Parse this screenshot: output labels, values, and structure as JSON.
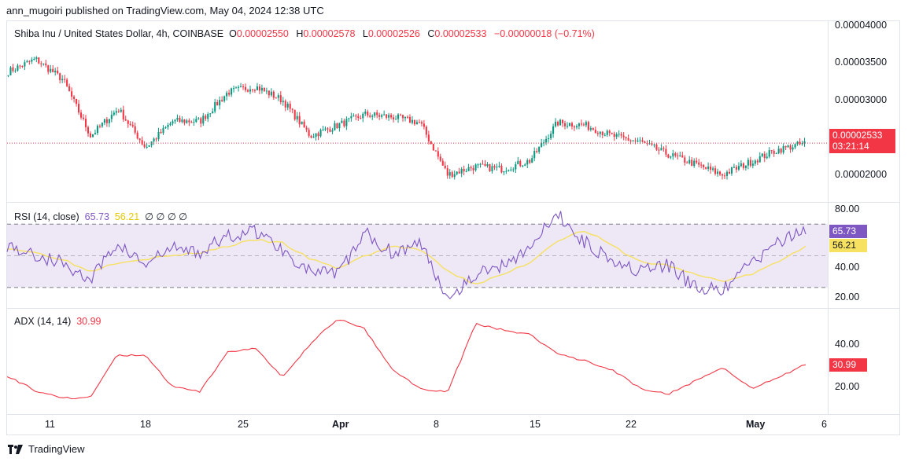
{
  "publisher": "ann_mugoiri published on TradingView.com, May 04, 2024 12:38 UTC",
  "legend": {
    "symbol": "Shiba Inu / United States Dollar, 4h, COINBASE",
    "o_label": "O",
    "o_value": "0.00002550",
    "h_label": "H",
    "h_value": "0.00002578",
    "l_label": "L",
    "l_value": "0.00002526",
    "c_label": "C",
    "c_value": "0.00002533",
    "change": "−0.00000018 (−0.71%)"
  },
  "price_badge": {
    "value": "0.00002533",
    "countdown": "03:21:14"
  },
  "rsi_legend": {
    "label": "RSI (14, close)",
    "rsi": "65.73",
    "ma": "56.21",
    "extras": "∅ ∅ ∅ ∅"
  },
  "adx_legend": {
    "label": "ADX (14, 14)",
    "value": "30.99"
  },
  "rsi_badges": {
    "rsi": "65.73",
    "ma": "56.21"
  },
  "adx_badge": "30.99",
  "footer": {
    "brand": "TradingView"
  },
  "colors": {
    "up": "#089981",
    "down": "#f23645",
    "rsi": "#7e57c2",
    "rsi_ma": "#f7e160",
    "adx": "#f23645",
    "band": "#ede7f6"
  },
  "chart_data": [
    {
      "type": "candlestick",
      "title": "Shiba Inu / United States Dollar, 4h, COINBASE",
      "x_ticks": [
        "11",
        "18",
        "25",
        "Apr",
        "8",
        "15",
        "22",
        "May",
        "6"
      ],
      "y_ticks": [
        "0.00004000",
        "0.00003500",
        "0.00003000",
        "0.00002000"
      ],
      "ylim": [
        1.84e-05,
        4e-05
      ],
      "last_price": 2.533e-05,
      "series": [
        {
          "name": "close (approx.)",
          "x": [
            "Mar 8",
            "Mar 11",
            "Mar 14",
            "Mar 16",
            "Mar 18",
            "Mar 20",
            "Mar 22",
            "Mar 25",
            "Mar 27",
            "Mar 28",
            "Apr 1",
            "Apr 3",
            "Apr 5",
            "Apr 8",
            "Apr 10",
            "Apr 12",
            "Apr 13",
            "Apr 15",
            "Apr 17",
            "Apr 19",
            "Apr 20",
            "Apr 22",
            "Apr 24",
            "Apr 26",
            "Apr 28",
            "Apr 30",
            "May 1",
            "May 2",
            "May 3",
            "May 4"
          ],
          "values": [
            3.4e-05,
            3.55e-05,
            3.3e-05,
            2.62e-05,
            2.95e-05,
            2.48e-05,
            2.8e-05,
            2.8e-05,
            3.15e-05,
            3.22e-05,
            3.05e-05,
            2.62e-05,
            2.75e-05,
            2.88e-05,
            2.85e-05,
            2.78e-05,
            2.15e-05,
            2.25e-05,
            2.22e-05,
            2.32e-05,
            2.78e-05,
            2.75e-05,
            2.62e-05,
            2.55e-05,
            2.4e-05,
            2.28e-05,
            2.15e-05,
            2.3e-05,
            2.45e-05,
            2.53e-05
          ]
        }
      ]
    },
    {
      "type": "line",
      "title": "RSI (14, close)",
      "y_ticks": [
        "80.00",
        "40.00",
        "20.00"
      ],
      "ylim": [
        18,
        82
      ],
      "bands": [
        30,
        50,
        70
      ],
      "series": [
        {
          "name": "RSI",
          "values": [
            57,
            50,
            46,
            34,
            58,
            44,
            55,
            52,
            62,
            66,
            54,
            40,
            38,
            64,
            52,
            58,
            24,
            38,
            44,
            56,
            76,
            58,
            48,
            40,
            44,
            30,
            28,
            45,
            58,
            65.73
          ]
        },
        {
          "name": "MA",
          "values": [
            55,
            52,
            48,
            40,
            46,
            48,
            50,
            52,
            56,
            60,
            58,
            48,
            42,
            50,
            56,
            54,
            40,
            32,
            38,
            46,
            60,
            66,
            56,
            46,
            44,
            38,
            34,
            38,
            46,
            56.21
          ]
        }
      ]
    },
    {
      "type": "line",
      "title": "ADX (14, 14)",
      "y_ticks": [
        "40.00",
        "20.00"
      ],
      "ylim": [
        5,
        60
      ],
      "series": [
        {
          "name": "ADX",
          "values": [
            25,
            17,
            13,
            13,
            36,
            36,
            19,
            16,
            38,
            40,
            24,
            42,
            56,
            50,
            28,
            18,
            16,
            53,
            50,
            47,
            37,
            33,
            28,
            18,
            15,
            22,
            30,
            18,
            24,
            30.99
          ]
        }
      ]
    }
  ]
}
